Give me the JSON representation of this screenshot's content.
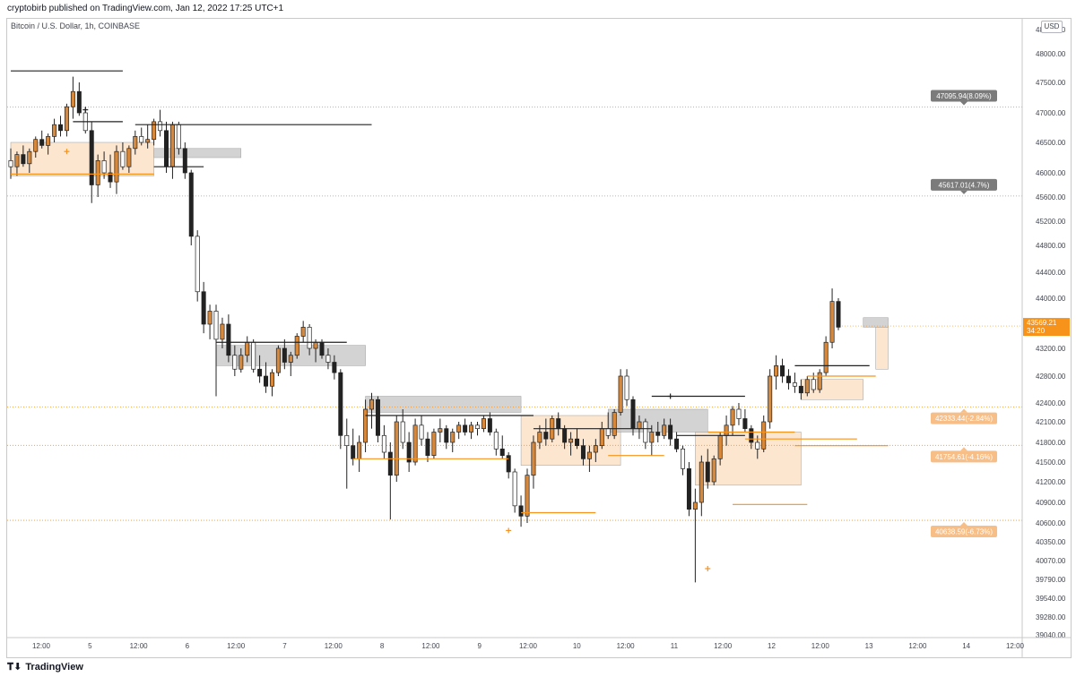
{
  "header": {
    "published": "cryptobirb published on TradingView.com, Jan 12, 2022 17:25 UTC+1",
    "symbol": "Bitcoin / U.S. Dollar, 1h, COINBASE",
    "currency": "USD"
  },
  "footer": {
    "brand": "TradingView"
  },
  "colors": {
    "up_body": "#d8883a",
    "down_body": "#222222",
    "down_body_alt": "#ffffff",
    "orange_line": "#f7931a",
    "orange_zone": "#fbe0c4",
    "grey_zone": "#c8c8c8",
    "dotted_grey": "#9e9e9e",
    "dotted_orange": "#f7931a",
    "current_price_bg": "#f7931a",
    "annotation_grey_bg": "#7b7b7b",
    "annotation_orange_bg": "#f7bf87"
  },
  "chart_data": {
    "type": "candlestick",
    "timeframe": "1h",
    "y_ticks": [
      "48400.00",
      "48000.00",
      "47500.00",
      "47000.00",
      "46500.00",
      "46000.00",
      "45600.00",
      "45200.00",
      "44800.00",
      "44400.00",
      "44000.00",
      "43600.00",
      "43200.00",
      "42800.00",
      "42400.00",
      "42100.00",
      "41800.00",
      "41500.00",
      "41200.00",
      "40900.00",
      "40600.00",
      "40350.00",
      "40070.00",
      "39790.00",
      "39540.00",
      "39280.00",
      "39040.00"
    ],
    "x_ticks": [
      "12:00",
      "5",
      "12:00",
      "6",
      "12:00",
      "7",
      "12:00",
      "8",
      "12:00",
      "9",
      "12:00",
      "10",
      "12:00",
      "11",
      "12:00",
      "12",
      "12:00",
      "13",
      "12:00",
      "14",
      "12:00"
    ],
    "current_price": {
      "price": "43569.21",
      "countdown": "34:20",
      "value": 43569.21
    },
    "price_levels": [
      {
        "label": "47095.94(8.09%)",
        "value": 47095.94,
        "style": "grey"
      },
      {
        "label": "45617.01(4.7%)",
        "value": 45617.01,
        "style": "grey"
      },
      {
        "label": "42333.44(-2.84%)",
        "value": 42333.44,
        "style": "orange"
      },
      {
        "label": "41754.61(-4.16%)",
        "value": 41754.61,
        "style": "orange"
      },
      {
        "label": "40638.59(-6.73%)",
        "value": 40638.59,
        "style": "orange"
      }
    ],
    "candles": [
      [
        46200,
        46400,
        45900,
        46100
      ],
      [
        46100,
        46350,
        45950,
        46300
      ],
      [
        46300,
        46450,
        46100,
        46150
      ],
      [
        46150,
        46400,
        46000,
        46350
      ],
      [
        46350,
        46600,
        46250,
        46550
      ],
      [
        46550,
        46700,
        46400,
        46450
      ],
      [
        46450,
        46650,
        46300,
        46600
      ],
      [
        46600,
        46900,
        46500,
        46800
      ],
      [
        46800,
        46950,
        46600,
        46700
      ],
      [
        46700,
        47150,
        46600,
        47100
      ],
      [
        47100,
        47600,
        46900,
        47350
      ],
      [
        47350,
        47500,
        46950,
        47000
      ],
      [
        47000,
        47100,
        46650,
        46700
      ],
      [
        46700,
        46850,
        45500,
        45800
      ],
      [
        45800,
        46300,
        45600,
        46200
      ],
      [
        46200,
        46350,
        45900,
        46000
      ],
      [
        46000,
        46300,
        45750,
        45850
      ],
      [
        45850,
        46450,
        45650,
        46350
      ],
      [
        46350,
        46500,
        46050,
        46100
      ],
      [
        46100,
        46450,
        46000,
        46400
      ],
      [
        46400,
        46700,
        46300,
        46600
      ],
      [
        46600,
        46750,
        46450,
        46500
      ],
      [
        46500,
        46800,
        46400,
        46550
      ],
      [
        46550,
        46900,
        46450,
        46850
      ],
      [
        46850,
        47050,
        46600,
        46700
      ],
      [
        46700,
        46850,
        46000,
        46100
      ],
      [
        46100,
        46850,
        45900,
        46800
      ],
      [
        46800,
        46850,
        46300,
        46400
      ],
      [
        46400,
        46500,
        45900,
        46000
      ],
      [
        46000,
        46050,
        44800,
        44950
      ],
      [
        44950,
        45050,
        43950,
        44100
      ],
      [
        44100,
        44250,
        43450,
        43600
      ],
      [
        43600,
        43900,
        43350,
        43800
      ],
      [
        43800,
        43900,
        42500,
        43350
      ],
      [
        43350,
        43700,
        43200,
        43600
      ],
      [
        43600,
        43750,
        43000,
        43100
      ],
      [
        43100,
        43250,
        42800,
        42900
      ],
      [
        42900,
        43200,
        42850,
        43100
      ],
      [
        43100,
        43400,
        43000,
        43300
      ],
      [
        43300,
        43350,
        42850,
        42900
      ],
      [
        42900,
        43100,
        42700,
        42800
      ],
      [
        42800,
        43000,
        42550,
        42650
      ],
      [
        42650,
        42900,
        42500,
        42850
      ],
      [
        42850,
        43250,
        42800,
        43200
      ],
      [
        43200,
        43350,
        42900,
        43000
      ],
      [
        43000,
        43150,
        42800,
        43100
      ],
      [
        43100,
        43450,
        43050,
        43400
      ],
      [
        43400,
        43650,
        43300,
        43550
      ],
      [
        43550,
        43600,
        43100,
        43200
      ],
      [
        43200,
        43350,
        43000,
        43300
      ],
      [
        43300,
        43350,
        43050,
        43100
      ],
      [
        43100,
        43200,
        42900,
        43000
      ],
      [
        43000,
        43100,
        42750,
        42850
      ],
      [
        42850,
        42900,
        41700,
        41900
      ],
      [
        41900,
        42150,
        41100,
        41750
      ],
      [
        41750,
        42000,
        41450,
        41550
      ],
      [
        41550,
        41900,
        41350,
        41800
      ],
      [
        41800,
        42450,
        41650,
        42300
      ],
      [
        42300,
        42550,
        42000,
        42450
      ],
      [
        42450,
        42500,
        41800,
        41900
      ],
      [
        41900,
        42050,
        41550,
        41650
      ],
      [
        41650,
        41800,
        40650,
        41300
      ],
      [
        41300,
        42200,
        41200,
        42100
      ],
      [
        42100,
        42300,
        41700,
        41800
      ],
      [
        41800,
        41950,
        41350,
        41500
      ],
      [
        41500,
        42150,
        41450,
        42050
      ],
      [
        42050,
        42200,
        41750,
        41850
      ],
      [
        41850,
        41950,
        41500,
        41600
      ],
      [
        41600,
        42000,
        41550,
        41950
      ],
      [
        41950,
        42150,
        41800,
        42000
      ],
      [
        42000,
        42050,
        41700,
        41800
      ],
      [
        41800,
        42000,
        41650,
        41950
      ],
      [
        41950,
        42100,
        41850,
        42050
      ],
      [
        42050,
        42150,
        41900,
        41950
      ],
      [
        41950,
        42100,
        41850,
        42050
      ],
      [
        42050,
        42100,
        41900,
        42000
      ],
      [
        42000,
        42200,
        41950,
        42150
      ],
      [
        42150,
        42250,
        41900,
        41950
      ],
      [
        41950,
        42000,
        41600,
        41700
      ],
      [
        41700,
        41900,
        41550,
        41600
      ],
      [
        41600,
        41650,
        41250,
        41350
      ],
      [
        41350,
        41400,
        40750,
        40850
      ],
      [
        40850,
        41000,
        40550,
        40700
      ],
      [
        40700,
        41400,
        40600,
        41300
      ],
      [
        41300,
        41900,
        41100,
        41800
      ],
      [
        41800,
        42050,
        41700,
        41950
      ],
      [
        41950,
        42150,
        41750,
        41850
      ],
      [
        41850,
        42200,
        41800,
        42150
      ],
      [
        42150,
        42250,
        41900,
        42000
      ],
      [
        42000,
        42050,
        41700,
        41800
      ],
      [
        41800,
        41950,
        41600,
        41850
      ],
      [
        41850,
        42000,
        41700,
        41750
      ],
      [
        41750,
        41850,
        41450,
        41550
      ],
      [
        41550,
        41750,
        41350,
        41650
      ],
      [
        41650,
        41850,
        41500,
        41750
      ],
      [
        41750,
        42100,
        41700,
        42000
      ],
      [
        42000,
        42250,
        41850,
        41900
      ],
      [
        41900,
        42300,
        41850,
        42250
      ],
      [
        42250,
        42900,
        42200,
        42800
      ],
      [
        42800,
        42900,
        42350,
        42450
      ],
      [
        42450,
        42500,
        41900,
        42000
      ],
      [
        42000,
        42200,
        41850,
        42100
      ],
      [
        42100,
        42150,
        41700,
        41800
      ],
      [
        41800,
        42050,
        41600,
        41950
      ],
      [
        41950,
        42100,
        41800,
        41900
      ],
      [
        41900,
        42150,
        41850,
        42050
      ],
      [
        42050,
        42150,
        41750,
        41850
      ],
      [
        41850,
        41950,
        41650,
        41700
      ],
      [
        41700,
        41750,
        41300,
        41400
      ],
      [
        41400,
        41500,
        40700,
        40800
      ],
      [
        40800,
        41100,
        39750,
        40900
      ],
      [
        40900,
        41600,
        40700,
        41500
      ],
      [
        41500,
        41700,
        41100,
        41200
      ],
      [
        41200,
        41600,
        41150,
        41550
      ],
      [
        41550,
        41950,
        41450,
        41900
      ],
      [
        41900,
        42200,
        41750,
        42050
      ],
      [
        42050,
        42350,
        41900,
        42300
      ],
      [
        42300,
        42400,
        42050,
        42150
      ],
      [
        42150,
        42300,
        41950,
        42000
      ],
      [
        42000,
        42050,
        41700,
        41800
      ],
      [
        41800,
        41900,
        41550,
        41700
      ],
      [
        41700,
        42200,
        41650,
        42100
      ],
      [
        42100,
        42900,
        42000,
        42800
      ],
      [
        42800,
        43100,
        42600,
        42950
      ],
      [
        42950,
        43050,
        42700,
        42800
      ],
      [
        42800,
        42900,
        42600,
        42700
      ],
      [
        42700,
        42850,
        42550,
        42650
      ],
      [
        42650,
        42750,
        42450,
        42550
      ],
      [
        42550,
        42800,
        42500,
        42750
      ],
      [
        42750,
        42850,
        42550,
        42600
      ],
      [
        42600,
        42900,
        42550,
        42850
      ],
      [
        42850,
        43400,
        42800,
        43300
      ],
      [
        43300,
        44150,
        43200,
        43950
      ],
      [
        43950,
        44000,
        43500,
        43550
      ]
    ]
  }
}
